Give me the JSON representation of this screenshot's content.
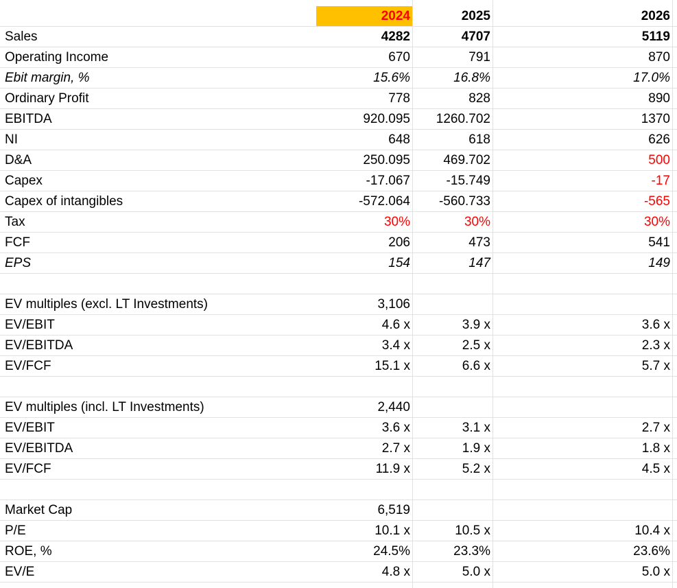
{
  "colors": {
    "highlight": "#ffc000",
    "red": "#ff0000",
    "grid": "#e1e1e1"
  },
  "header": {
    "y1": "2024",
    "y2": "2025",
    "y3": "2026"
  },
  "rows": [
    {
      "label": "Sales",
      "v1": "4282",
      "v2": "4707",
      "v3": "5119"
    },
    {
      "label": "Operating Income",
      "v1": "670",
      "v2": "791",
      "v3": "870"
    },
    {
      "label": "Ebit margin, %",
      "v1": "15.6%",
      "v2": "16.8%",
      "v3": "17.0%"
    },
    {
      "label": "Ordinary Profit",
      "v1": "778",
      "v2": "828",
      "v3": "890"
    },
    {
      "label": "EBITDA",
      "v1": "920.095",
      "v2": "1260.702",
      "v3": "1370"
    },
    {
      "label": "NI",
      "v1": "648",
      "v2": "618",
      "v3": "626"
    },
    {
      "label": "D&A",
      "v1": "250.095",
      "v2": "469.702",
      "v3": "500"
    },
    {
      "label": "Capex",
      "v1": "-17.067",
      "v2": "-15.749",
      "v3": "-17"
    },
    {
      "label": "Capex of intangibles",
      "v1": "-572.064",
      "v2": "-560.733",
      "v3": "-565"
    },
    {
      "label": "Tax",
      "v1": "30%",
      "v2": "30%",
      "v3": "30%"
    },
    {
      "label": "FCF",
      "v1": "206",
      "v2": "473",
      "v3": "541"
    },
    {
      "label": "EPS",
      "v1": "154",
      "v2": "147",
      "v3": "149"
    },
    {
      "label": "",
      "v1": "",
      "v2": "",
      "v3": ""
    },
    {
      "label": "EV multiples (excl. LT Investments)",
      "v1": "3,106",
      "v2": "",
      "v3": ""
    },
    {
      "label": "EV/EBIT",
      "v1": "4.6 x",
      "v2": "3.9 x",
      "v3": "3.6 x"
    },
    {
      "label": "EV/EBITDA",
      "v1": "3.4 x",
      "v2": "2.5 x",
      "v3": "2.3 x"
    },
    {
      "label": "EV/FCF",
      "v1": "15.1 x",
      "v2": "6.6 x",
      "v3": "5.7 x"
    },
    {
      "label": "",
      "v1": "",
      "v2": "",
      "v3": ""
    },
    {
      "label": "EV multiples (incl. LT Investments)",
      "v1": "2,440",
      "v2": "",
      "v3": ""
    },
    {
      "label": "EV/EBIT",
      "v1": "3.6 x",
      "v2": "3.1 x",
      "v3": "2.7 x"
    },
    {
      "label": "EV/EBITDA",
      "v1": "2.7 x",
      "v2": "1.9 x",
      "v3": "1.8 x"
    },
    {
      "label": "EV/FCF",
      "v1": "11.9 x",
      "v2": "5.2 x",
      "v3": "4.5 x"
    },
    {
      "label": "",
      "v1": "",
      "v2": "",
      "v3": ""
    },
    {
      "label": "Market Cap",
      "v1": "6,519",
      "v2": "",
      "v3": ""
    },
    {
      "label": "P/E",
      "v1": "10.1 x",
      "v2": "10.5 x",
      "v3": "10.4 x"
    },
    {
      "label": "ROE, %",
      "v1": "24.5%",
      "v2": "23.3%",
      "v3": "23.6%"
    },
    {
      "label": "EV/E",
      "v1": "4.8 x",
      "v2": "5.0 x",
      "v3": "5.0 x"
    }
  ]
}
